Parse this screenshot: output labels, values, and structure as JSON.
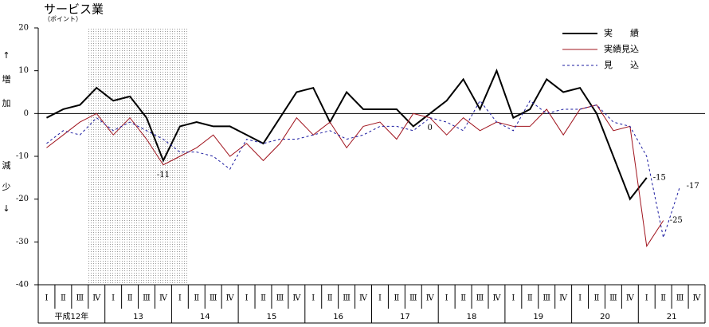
{
  "chart_data": {
    "type": "line",
    "title": "サービス業",
    "subtitle": "（ポイント）",
    "y_label_up": [
      "↑",
      "増",
      "加"
    ],
    "y_label_down": [
      "減",
      "少",
      "↓"
    ],
    "categories": [
      "Ⅰ",
      "Ⅱ",
      "Ⅲ",
      "Ⅳ",
      "Ⅰ",
      "Ⅱ",
      "Ⅲ",
      "Ⅳ",
      "Ⅰ",
      "Ⅱ",
      "Ⅲ",
      "Ⅳ",
      "Ⅰ",
      "Ⅱ",
      "Ⅲ",
      "Ⅳ",
      "Ⅰ",
      "Ⅱ",
      "Ⅲ",
      "Ⅳ",
      "Ⅰ",
      "Ⅱ",
      "Ⅲ",
      "Ⅳ",
      "Ⅰ",
      "Ⅱ",
      "Ⅲ",
      "Ⅳ",
      "Ⅰ",
      "Ⅱ",
      "Ⅲ",
      "Ⅳ",
      "Ⅰ",
      "Ⅱ",
      "Ⅲ",
      "Ⅳ",
      "Ⅰ",
      "Ⅱ",
      "Ⅲ",
      "Ⅳ"
    ],
    "years": [
      "平成12年",
      "13",
      "14",
      "15",
      "16",
      "17",
      "18",
      "19",
      "20",
      "21"
    ],
    "shaded_quarters": [
      3,
      8
    ],
    "ylim": [
      -40,
      20
    ],
    "yticks": [
      20,
      10,
      0,
      -10,
      -20,
      -30,
      -40
    ],
    "series": [
      {
        "name": "実　　績",
        "color": "#000000",
        "width": 2,
        "dash": false,
        "labeled_points": [
          7,
          23,
          36
        ],
        "values": [
          -1,
          1,
          2,
          6,
          3,
          4,
          -1,
          -11,
          -3,
          -2,
          -3,
          -3,
          -5,
          -7,
          -1,
          5,
          6,
          -2,
          5,
          1,
          1,
          1,
          -3,
          0,
          3,
          8,
          1,
          10,
          -1,
          1,
          8,
          5,
          6,
          0,
          -10,
          -20,
          -15,
          null,
          null,
          null
        ]
      },
      {
        "name": "実績見込",
        "color": "#a0141e",
        "width": 1,
        "dash": false,
        "labeled_points": [
          37
        ],
        "values": [
          -8,
          -5,
          -2,
          0,
          -5,
          -1,
          -6,
          -12,
          -10,
          -8,
          -5,
          -10,
          -7,
          -11,
          -7,
          -1,
          -5,
          -2,
          -8,
          -3,
          -2,
          -6,
          0,
          -1,
          -5,
          -1,
          -4,
          -2,
          -3,
          -3,
          1,
          -5,
          1,
          2,
          -4,
          -3,
          -31,
          -25,
          null,
          null
        ]
      },
      {
        "name": "見　　込",
        "color": "#1a1aa0",
        "width": 1,
        "dash": true,
        "labeled_points": [
          38
        ],
        "values": [
          -7,
          -4,
          -5,
          -1,
          -4,
          -2,
          -4,
          -6,
          -9,
          -9,
          -10,
          -13,
          -6,
          -7,
          -6,
          -6,
          -5,
          -4,
          -6,
          -5,
          -3,
          -3,
          -4,
          -1,
          -2,
          -4,
          3,
          -2,
          -4,
          3,
          0,
          1,
          1,
          2,
          -2,
          -3,
          -10,
          -29,
          -17,
          null
        ]
      }
    ]
  }
}
